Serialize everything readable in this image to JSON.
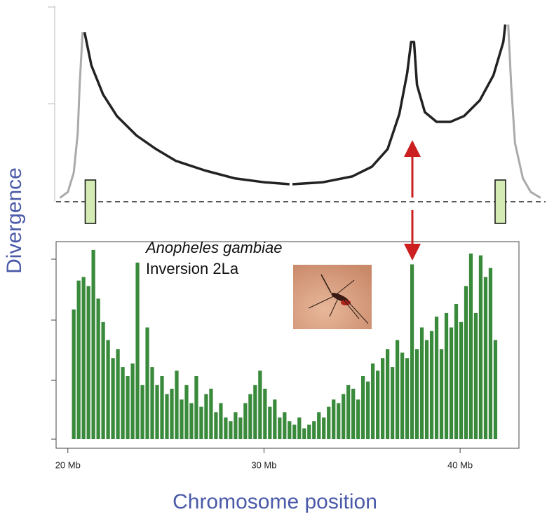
{
  "ylabel": "Divergence",
  "xlabel": "Chromosome position",
  "annotation": {
    "species": "Anopheles gambiae",
    "inversion": "Inversion 2La"
  },
  "chart_data": [
    {
      "type": "line",
      "xlim": [
        19.4,
        44.25
      ],
      "ylim": [
        0,
        1
      ],
      "series": [
        {
          "color": "#aaaaaa",
          "x": [
            19.6,
            20.0,
            20.3,
            20.5,
            20.6,
            20.75
          ],
          "values": [
            0.02,
            0.05,
            0.15,
            0.35,
            0.6,
            0.87
          ]
        },
        {
          "color": "#222222",
          "x": [
            20.85,
            21.2,
            21.8,
            22.5,
            23.5,
            24.5,
            25.5,
            27,
            28.5,
            30,
            31.3,
            31.38,
            31.45,
            33,
            34.5,
            35.5,
            36.3,
            36.9,
            37.3,
            37.5,
            37.65,
            37.8,
            38.2,
            38.8,
            39.5,
            40.2,
            41,
            41.7,
            42.2,
            42.3
          ],
          "values": [
            0.87,
            0.7,
            0.55,
            0.44,
            0.34,
            0.27,
            0.21,
            0.16,
            0.12,
            0.1,
            0.09,
            null,
            0.09,
            0.1,
            0.13,
            0.18,
            0.27,
            0.45,
            0.66,
            0.82,
            0.82,
            0.6,
            0.46,
            0.41,
            0.41,
            0.44,
            0.52,
            0.65,
            0.82,
            0.91
          ]
        },
        {
          "color": "#aaaaaa",
          "x": [
            42.45,
            42.6,
            42.8,
            43.2,
            43.6,
            44.1
          ],
          "values": [
            0.91,
            0.6,
            0.3,
            0.12,
            0.05,
            0.02
          ]
        }
      ],
      "breakpoints": [
        21.15,
        42.05
      ],
      "breakpoint_color": "#d4ecb4"
    },
    {
      "type": "bar",
      "color": "#3a8a3c",
      "xlim": [
        19.4,
        43
      ],
      "ylim": [
        0,
        1.1
      ],
      "xticks": [
        {
          "value": 20,
          "label": "20 Mb"
        },
        {
          "value": 30,
          "label": "30 Mb"
        },
        {
          "value": 40,
          "label": "40 Mb"
        }
      ],
      "x": [
        20.3,
        20.55,
        20.8,
        21.05,
        21.3,
        21.55,
        21.8,
        22.05,
        22.3,
        22.55,
        22.8,
        23.05,
        23.3,
        23.55,
        23.8,
        24.05,
        24.3,
        24.55,
        24.8,
        25.05,
        25.3,
        25.55,
        25.8,
        26.05,
        26.3,
        26.55,
        26.8,
        27.05,
        27.3,
        27.55,
        27.8,
        28.05,
        28.3,
        28.55,
        28.8,
        29.05,
        29.3,
        29.55,
        29.8,
        30.05,
        30.3,
        30.55,
        30.8,
        31.05,
        31.3,
        31.55,
        31.8,
        32.05,
        32.3,
        32.55,
        32.8,
        33.05,
        33.3,
        33.55,
        33.8,
        34.05,
        34.3,
        34.55,
        34.8,
        35.05,
        35.3,
        35.55,
        35.8,
        36.05,
        36.3,
        36.55,
        36.8,
        37.05,
        37.3,
        37.55,
        37.8,
        38.05,
        38.3,
        38.55,
        38.8,
        39.05,
        39.3,
        39.55,
        39.8,
        40.05,
        40.3,
        40.55,
        40.8,
        41.05,
        41.3,
        41.55,
        41.8
      ],
      "values": [
        0.72,
        0.88,
        0.9,
        0.85,
        1.05,
        0.78,
        0.65,
        0.55,
        0.45,
        0.5,
        0.4,
        0.35,
        0.42,
        0.98,
        0.3,
        0.62,
        0.4,
        0.3,
        0.35,
        0.25,
        0.28,
        0.38,
        0.22,
        0.3,
        0.2,
        0.35,
        0.18,
        0.25,
        0.28,
        0.15,
        0.2,
        0.12,
        0.1,
        0.15,
        0.12,
        0.2,
        0.25,
        0.3,
        0.38,
        0.28,
        0.18,
        0.22,
        0.12,
        0.15,
        0.1,
        0.08,
        0.12,
        0.06,
        0.08,
        0.1,
        0.15,
        0.12,
        0.18,
        0.22,
        0.2,
        0.25,
        0.3,
        0.28,
        0.22,
        0.35,
        0.32,
        0.42,
        0.38,
        0.45,
        0.5,
        0.4,
        0.55,
        0.48,
        0.45,
        0.97,
        0.5,
        0.62,
        0.55,
        0.6,
        0.68,
        0.5,
        0.7,
        0.62,
        0.75,
        0.65,
        0.85,
        1.03,
        0.7,
        1.02,
        0.9,
        0.95,
        0.55
      ]
    }
  ]
}
